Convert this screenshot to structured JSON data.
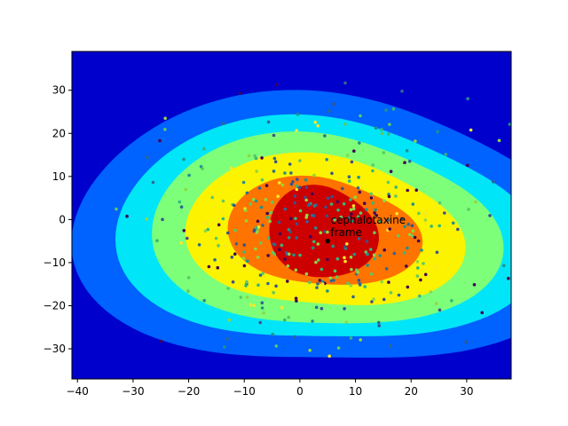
{
  "chart_data": {
    "type": "contour-scatter",
    "title": "",
    "xlabel": "",
    "ylabel": "",
    "xlim": [
      -41,
      38
    ],
    "ylim": [
      -37,
      39
    ],
    "x_ticks": [
      -40,
      -30,
      -20,
      -10,
      0,
      10,
      20,
      30
    ],
    "y_ticks": [
      -30,
      -20,
      -10,
      0,
      10,
      20,
      30
    ],
    "grid": false,
    "colormap": "jet",
    "contour_levels": [
      {
        "level": 0,
        "color": "#0000cd"
      },
      {
        "level": 1,
        "color": "#0062ff"
      },
      {
        "level": 2,
        "color": "#00e5f8"
      },
      {
        "level": 3,
        "color": "#7dff7a"
      },
      {
        "level": 4,
        "color": "#fbf300"
      },
      {
        "level": 5,
        "color": "#ff7300"
      },
      {
        "level": 6,
        "color": "#cd0000"
      }
    ],
    "contour_center": [
      4,
      -3
    ],
    "highlight_point": {
      "x": 5,
      "y": -5,
      "color": "#000000"
    },
    "annotations": [
      {
        "text": "cephalotaxine",
        "x": 5.5,
        "y": -1
      },
      {
        "text": "frame",
        "x": 5.5,
        "y": -3.8
      }
    ],
    "scatter_colors": [
      "#440154",
      "#31688e",
      "#35b779",
      "#fde725",
      "#21918c",
      "#3b528b",
      "#90d743",
      "#5ec962"
    ],
    "scatter_count": 420
  }
}
